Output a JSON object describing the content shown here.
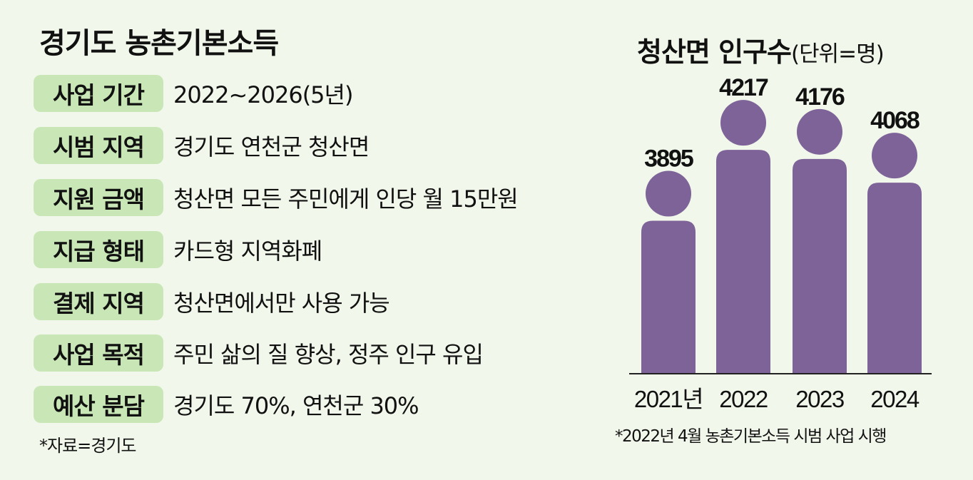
{
  "info": {
    "title": "경기도 농촌기본소득",
    "rows": [
      {
        "label": "사업 기간",
        "value": "2022~2026(5년)"
      },
      {
        "label": "시범 지역",
        "value": "경기도 연천군 청산면"
      },
      {
        "label": "지원 금액",
        "value": "청산면 모든 주민에게 인당 월 15만원"
      },
      {
        "label": "지급 형태",
        "value": "카드형 지역화폐"
      },
      {
        "label": "결제 지역",
        "value": "청산면에서만 사용 가능"
      },
      {
        "label": "사업 목적",
        "value": "주민 삶의 질 향상, 정주 인구 유입"
      },
      {
        "label": "예산 분담",
        "value": "경기도 70%, 연천군 30%"
      }
    ],
    "source": "*자료=경기도"
  },
  "chart_data": {
    "type": "bar",
    "title": "청산면 인구수",
    "unit": "(단위=명)",
    "categories": [
      "2021년",
      "2022",
      "2023",
      "2024"
    ],
    "values": [
      3895,
      4217,
      4176,
      4068
    ],
    "data_labels": [
      "3895",
      "4217",
      "4176",
      "4068"
    ],
    "ylim": [
      3200,
      4250
    ],
    "grid": false,
    "footnote": "*2022년 4월 농촌기본소득 시범 사업 시행",
    "colors": {
      "bar": "#7e6399",
      "axis": "#222222"
    }
  }
}
